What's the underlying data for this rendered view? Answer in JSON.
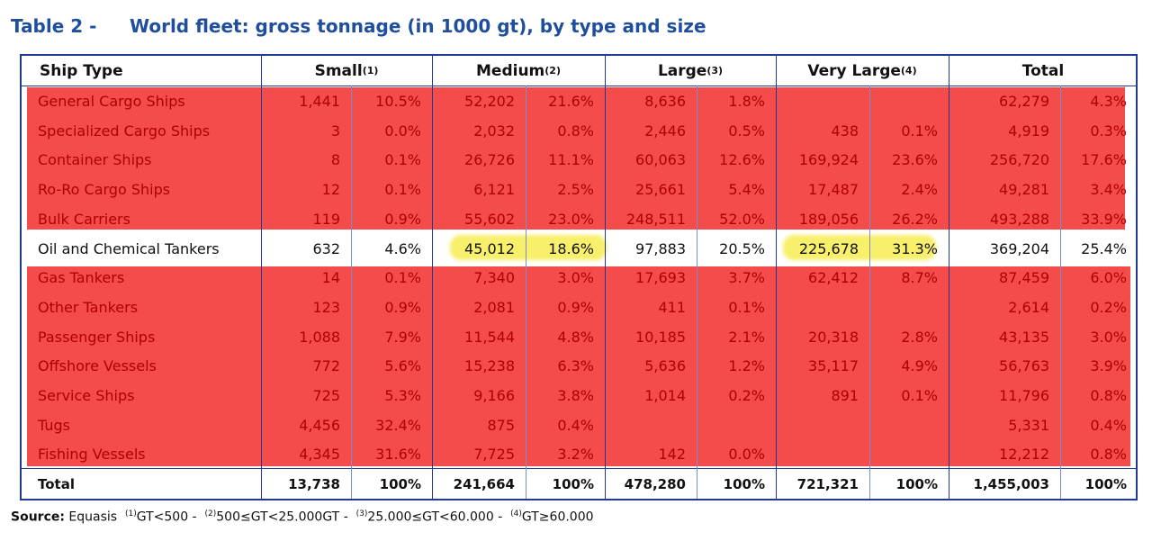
{
  "title": {
    "number": "Table 2 -",
    "text": "World fleet: gross tonnage (in 1000 gt), by type and size"
  },
  "header": {
    "ship_type": "Ship Type",
    "small": "Small",
    "small_sup": "(1)",
    "medium": "Medium",
    "medium_sup": "(2)",
    "large": "Large",
    "large_sup": "(3)",
    "very_large": "Very Large",
    "very_large_sup": "(4)",
    "total": "Total"
  },
  "rows": [
    {
      "name": "General Cargo Ships",
      "v": [
        "1,441",
        "10.5%",
        "52,202",
        "21.6%",
        "8,636",
        "1.8%",
        "",
        "",
        "62,279",
        "4.3%"
      ]
    },
    {
      "name": "Specialized Cargo Ships",
      "v": [
        "3",
        "0.0%",
        "2,032",
        "0.8%",
        "2,446",
        "0.5%",
        "438",
        "0.1%",
        "4,919",
        "0.3%"
      ]
    },
    {
      "name": "Container Ships",
      "v": [
        "8",
        "0.1%",
        "26,726",
        "11.1%",
        "60,063",
        "12.6%",
        "169,924",
        "23.6%",
        "256,720",
        "17.6%"
      ]
    },
    {
      "name": "Ro-Ro Cargo Ships",
      "v": [
        "12",
        "0.1%",
        "6,121",
        "2.5%",
        "25,661",
        "5.4%",
        "17,487",
        "2.4%",
        "49,281",
        "3.4%"
      ]
    },
    {
      "name": "Bulk Carriers",
      "v": [
        "119",
        "0.9%",
        "55,602",
        "23.0%",
        "248,511",
        "52.0%",
        "189,056",
        "26.2%",
        "493,288",
        "33.9%"
      ]
    },
    {
      "name": "Oil and Chemical Tankers",
      "v": [
        "632",
        "4.6%",
        "45,012",
        "18.6%",
        "97,883",
        "20.5%",
        "225,678",
        "31.3%",
        "369,204",
        "25.4%"
      ]
    },
    {
      "name": "Gas Tankers",
      "v": [
        "14",
        "0.1%",
        "7,340",
        "3.0%",
        "17,693",
        "3.7%",
        "62,412",
        "8.7%",
        "87,459",
        "6.0%"
      ]
    },
    {
      "name": "Other Tankers",
      "v": [
        "123",
        "0.9%",
        "2,081",
        "0.9%",
        "411",
        "0.1%",
        "",
        "",
        "2,614",
        "0.2%"
      ]
    },
    {
      "name": "Passenger Ships",
      "v": [
        "1,088",
        "7.9%",
        "11,544",
        "4.8%",
        "10,185",
        "2.1%",
        "20,318",
        "2.8%",
        "43,135",
        "3.0%"
      ]
    },
    {
      "name": "Offshore Vessels",
      "v": [
        "772",
        "5.6%",
        "15,238",
        "6.3%",
        "5,636",
        "1.2%",
        "35,117",
        "4.9%",
        "56,763",
        "3.9%"
      ]
    },
    {
      "name": "Service Ships",
      "v": [
        "725",
        "5.3%",
        "9,166",
        "3.8%",
        "1,014",
        "0.2%",
        "891",
        "0.1%",
        "11,796",
        "0.8%"
      ]
    },
    {
      "name": "Tugs",
      "v": [
        "4,456",
        "32.4%",
        "875",
        "0.4%",
        "",
        "",
        "",
        "",
        "5,331",
        "0.4%"
      ]
    },
    {
      "name": "Fishing Vessels",
      "v": [
        "4,345",
        "31.6%",
        "7,725",
        "3.2%",
        "142",
        "0.0%",
        "",
        "",
        "12,212",
        "0.8%"
      ]
    }
  ],
  "total_row": {
    "name": "Total",
    "v": [
      "13,738",
      "100%",
      "241,664",
      "100%",
      "478,280",
      "100%",
      "721,321",
      "100%",
      "1,455,003",
      "100%"
    ]
  },
  "source": {
    "label": "Source:",
    "text": "Equasis",
    "n1": "(1)",
    "t1": "GT<500  -",
    "n2": "(2)",
    "t2": "500≤GT<25.000GT  -",
    "n3": "(3)",
    "t3": "25.000≤GT<60.000  -",
    "n4": "(4)",
    "t4": "GT≥60.000"
  },
  "colors": {
    "title": "#1f4e9c",
    "highlight_red": "#f44b4b",
    "highlight_yellow": "#f8ef6a",
    "border": "#1f3a93"
  }
}
